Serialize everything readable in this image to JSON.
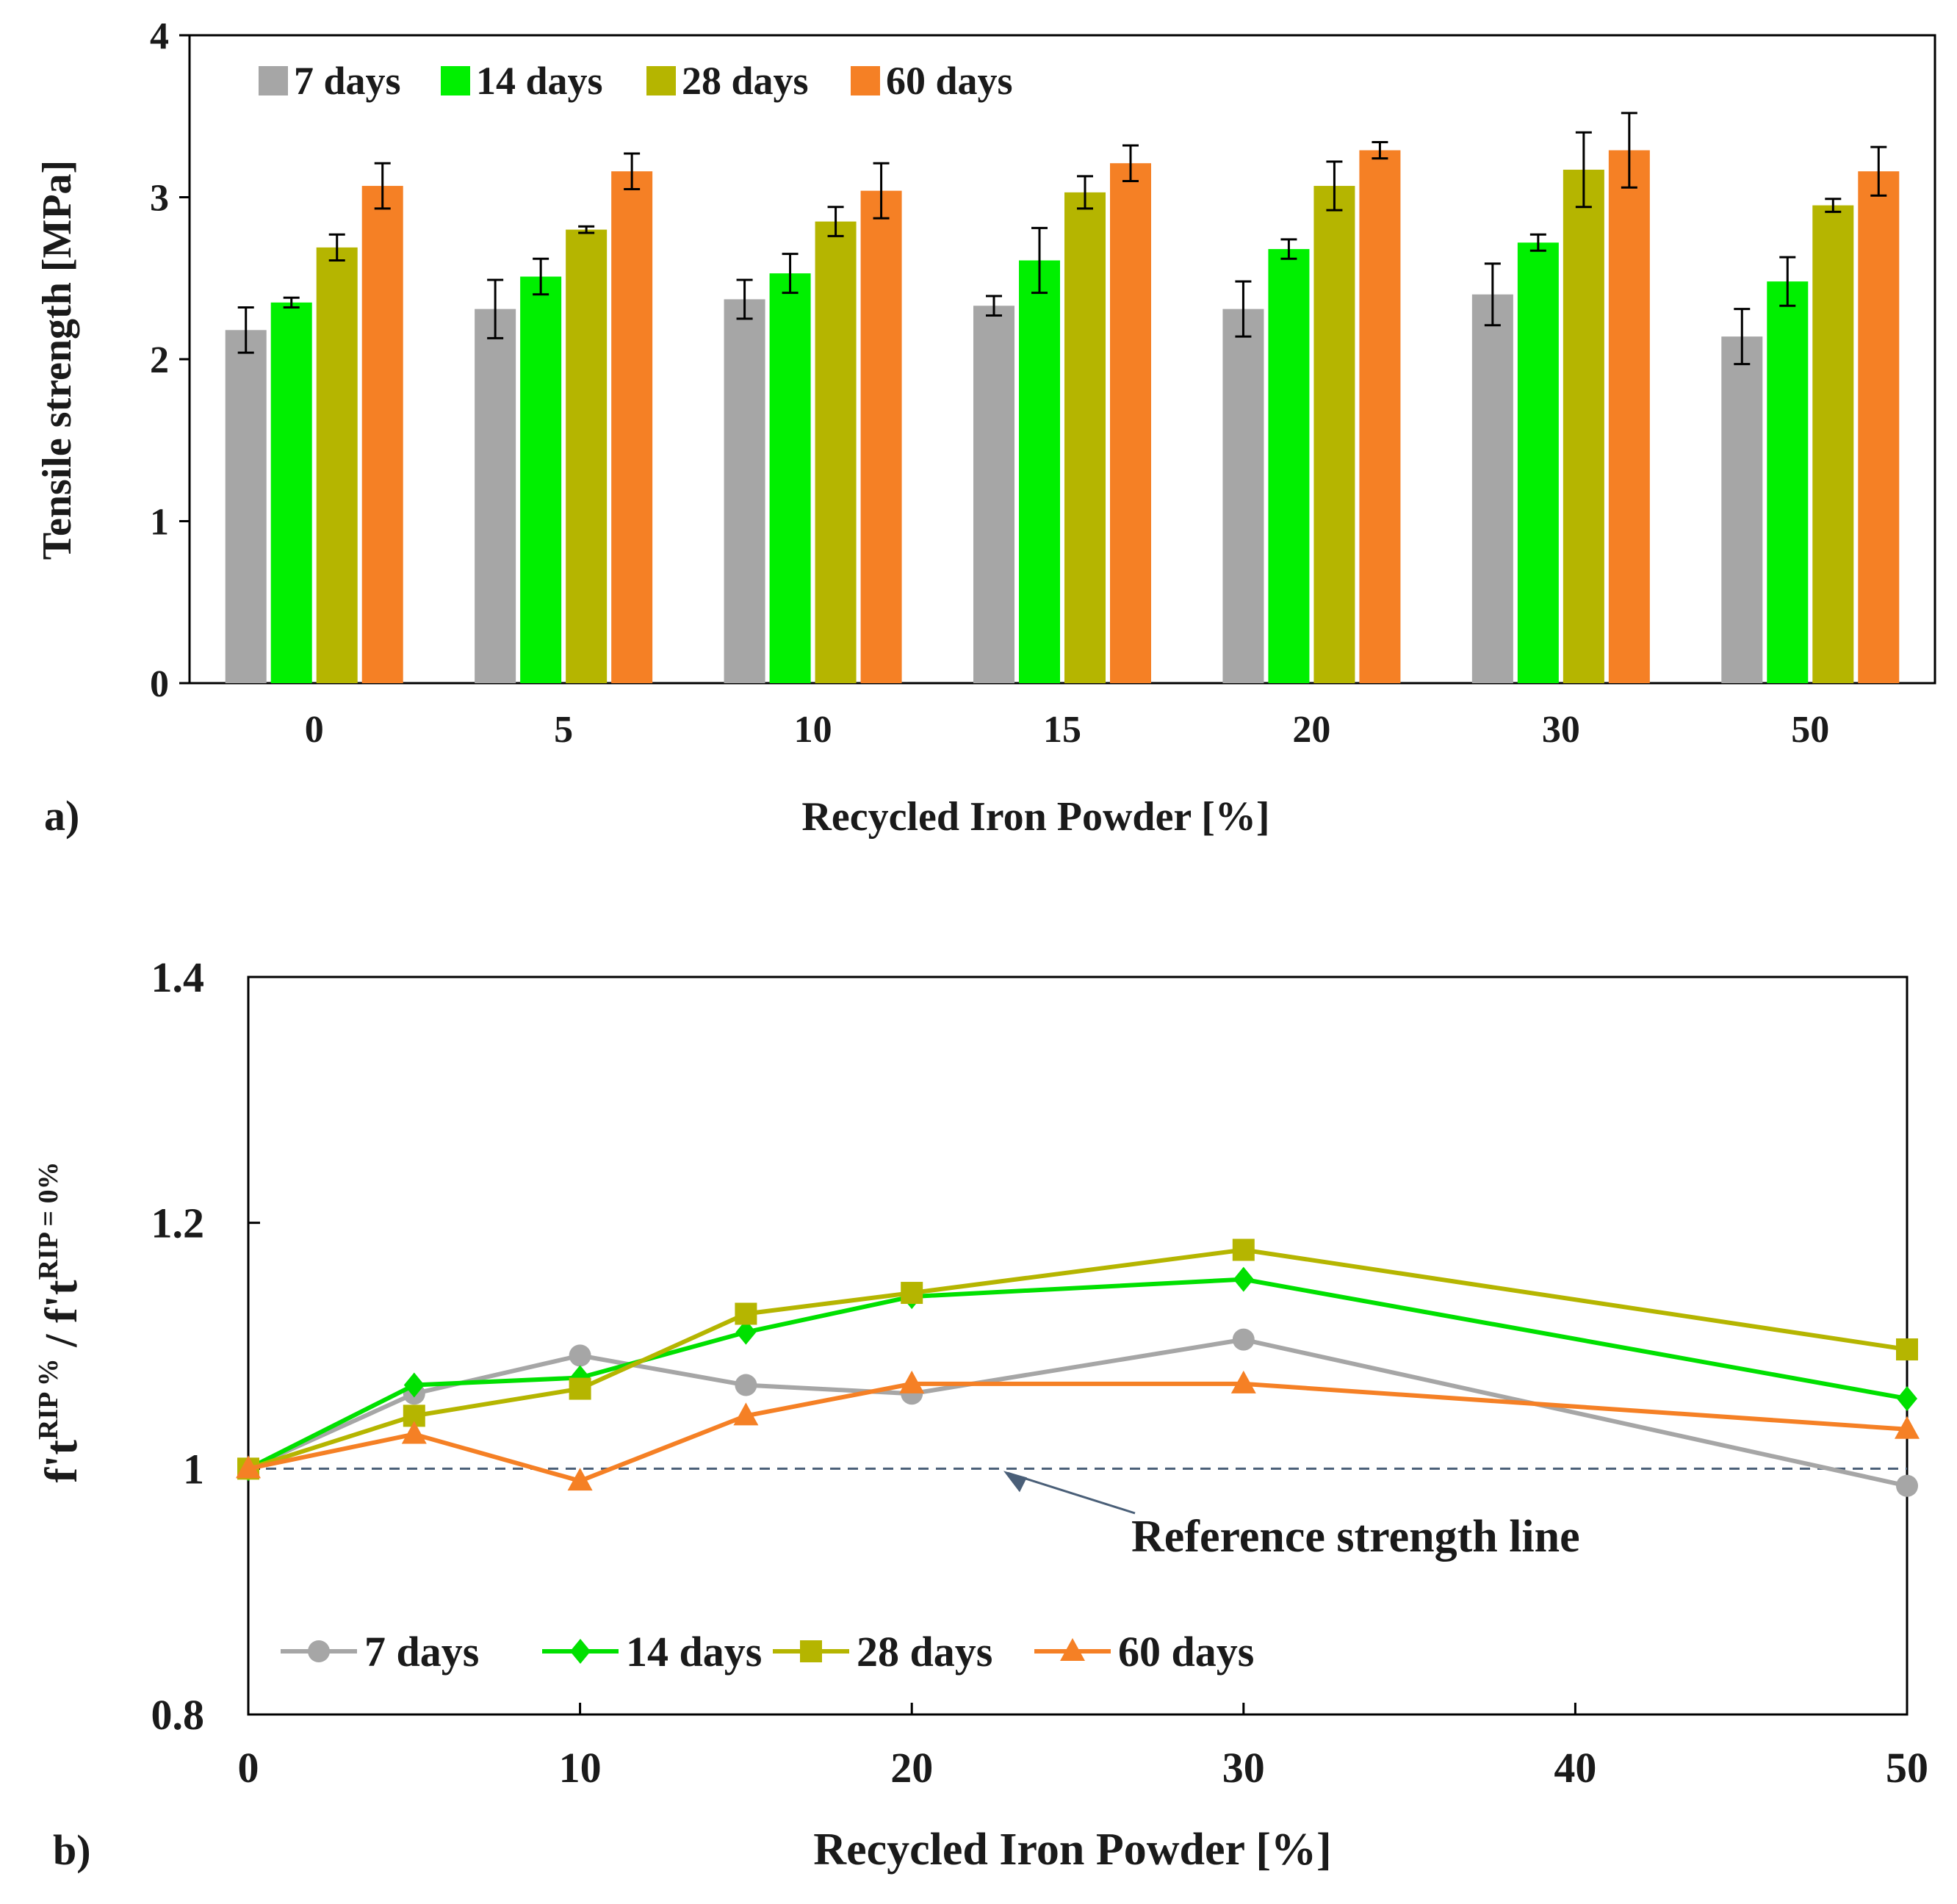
{
  "chart_data": [
    {
      "id": "panel-a",
      "type": "bar",
      "panel_label": "a)",
      "title": "",
      "xlabel": "Recycled Iron Powder [%]",
      "ylabel": "Tensile strength [MPa]",
      "ylim": [
        0,
        4
      ],
      "yticks": [
        "0",
        "1",
        "2",
        "3",
        "4"
      ],
      "categories": [
        "0",
        "5",
        "10",
        "15",
        "20",
        "30",
        "50"
      ],
      "legend_position": "top-left",
      "series": [
        {
          "name": "7 days",
          "color": "#a6a6a6",
          "values": [
            2.18,
            2.31,
            2.37,
            2.33,
            2.31,
            2.4,
            2.14
          ],
          "errors": [
            0.14,
            0.18,
            0.12,
            0.06,
            0.17,
            0.19,
            0.17
          ]
        },
        {
          "name": "14 days",
          "color": "#00f000",
          "values": [
            2.35,
            2.51,
            2.53,
            2.61,
            2.68,
            2.72,
            2.48
          ],
          "errors": [
            0.03,
            0.11,
            0.12,
            0.2,
            0.06,
            0.05,
            0.15
          ]
        },
        {
          "name": "28 days",
          "color": "#b5b500",
          "values": [
            2.69,
            2.8,
            2.85,
            3.03,
            3.07,
            3.17,
            2.95
          ],
          "errors": [
            0.08,
            0.02,
            0.09,
            0.1,
            0.15,
            0.23,
            0.04
          ]
        },
        {
          "name": "60 days",
          "color": "#f58025",
          "values": [
            3.07,
            3.16,
            3.04,
            3.21,
            3.29,
            3.29,
            3.16
          ],
          "errors": [
            0.14,
            0.11,
            0.17,
            0.11,
            0.05,
            0.23,
            0.15
          ]
        }
      ]
    },
    {
      "id": "panel-b",
      "type": "line",
      "panel_label": "b)",
      "title": "",
      "xlabel": "Recycled Iron Powder [%]",
      "ylabel_main": "f't",
      "ylabel_sup1": "RIP %",
      "ylabel_sep": " / ",
      "ylabel_sup2": "RIP = 0%",
      "xlim": [
        0,
        50
      ],
      "ylim": [
        0.8,
        1.4
      ],
      "xticks": [
        0,
        10,
        20,
        30,
        40,
        50
      ],
      "yticks": [
        0.8,
        1.0,
        1.2,
        1.4
      ],
      "ytick_labels": [
        "0.8",
        "1",
        "1.2",
        "1.4"
      ],
      "x": [
        0,
        5,
        10,
        15,
        20,
        30,
        50
      ],
      "legend_position": "bottom-left",
      "reference_line": {
        "y": 1.0,
        "label": "Reference strength line",
        "color": "#4a5f78"
      },
      "series": [
        {
          "name": "7 days",
          "color": "#a6a6a6",
          "marker": "circle",
          "values": [
            1.0,
            1.061,
            1.092,
            1.068,
            1.061,
            1.105,
            0.986
          ]
        },
        {
          "name": "14 days",
          "color": "#00e000",
          "marker": "diamond",
          "values": [
            1.0,
            1.068,
            1.074,
            1.111,
            1.14,
            1.154,
            1.057
          ]
        },
        {
          "name": "28 days",
          "color": "#b5b500",
          "marker": "square",
          "values": [
            1.0,
            1.043,
            1.065,
            1.126,
            1.143,
            1.178,
            1.097
          ]
        },
        {
          "name": "60 days",
          "color": "#f58025",
          "marker": "triangle",
          "values": [
            1.0,
            1.028,
            0.99,
            1.043,
            1.069,
            1.069,
            1.032
          ]
        }
      ]
    }
  ]
}
